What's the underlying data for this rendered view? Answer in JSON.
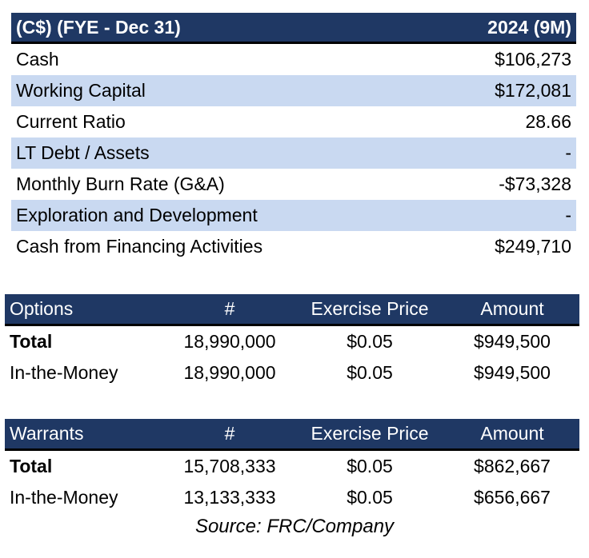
{
  "summary": {
    "header_label": "(C$) (FYE - Dec 31)",
    "header_period": "2024 (9M)",
    "rows": [
      {
        "label": "Cash",
        "value": "$106,273"
      },
      {
        "label": "Working Capital",
        "value": "$172,081"
      },
      {
        "label": "Current Ratio",
        "value": "28.66"
      },
      {
        "label": "LT Debt / Assets",
        "value": "-"
      },
      {
        "label": "Monthly Burn Rate (G&A)",
        "value": "-$73,328"
      },
      {
        "label": "Exploration and Development",
        "value": "-"
      },
      {
        "label": "Cash from Financing Activities",
        "value": "$249,710"
      }
    ]
  },
  "options": {
    "headers": [
      "Options",
      "#",
      "Exercise Price",
      "Amount"
    ],
    "rows": [
      [
        "Total",
        "18,990,000",
        "$0.05",
        "$949,500"
      ],
      [
        "In-the-Money",
        "18,990,000",
        "$0.05",
        "$949,500"
      ]
    ]
  },
  "warrants": {
    "headers": [
      "Warrants",
      "#",
      "Exercise Price",
      "Amount"
    ],
    "rows": [
      [
        "Total",
        "15,708,333",
        "$0.05",
        "$862,667"
      ],
      [
        "In-the-Money",
        "13,133,333",
        "$0.05",
        "$656,667"
      ]
    ]
  },
  "source": "Source: FRC/Company"
}
